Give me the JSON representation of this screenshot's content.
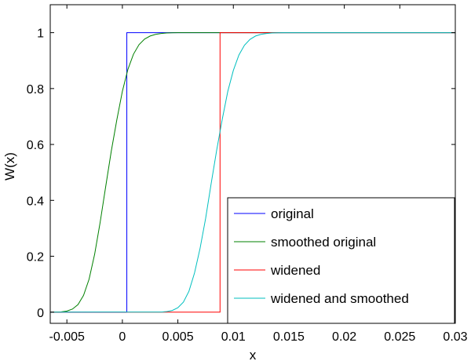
{
  "chart_data": {
    "type": "line",
    "title": "",
    "xlabel": "x",
    "ylabel": "W(x)",
    "xlim": [
      -0.0065,
      0.03
    ],
    "ylim": [
      -0.04,
      1.1
    ],
    "xticks": [
      -0.005,
      0,
      0.005,
      0.01,
      0.015,
      0.02,
      0.025,
      0.03
    ],
    "xtick_labels": [
      "-0.005",
      "0",
      "0.005",
      "0.01",
      "0.015",
      "0.02",
      "0.025",
      "0.03"
    ],
    "yticks": [
      0,
      0.2,
      0.4,
      0.6,
      0.8,
      1
    ],
    "ytick_labels": [
      "0",
      "0.2",
      "0.4",
      "0.6",
      "0.8",
      "1"
    ],
    "grid": false,
    "legend_position": "lower-right",
    "series": [
      {
        "name": "original",
        "color": "#0000ff",
        "x": [
          -0.0065,
          0.0004,
          0.0004,
          0.03
        ],
        "y": [
          0,
          0,
          1,
          1
        ]
      },
      {
        "name": "smoothed original",
        "color": "#008000",
        "x": [
          -0.0065,
          -0.0055,
          -0.005,
          -0.0045,
          -0.004,
          -0.0035,
          -0.003,
          -0.0025,
          -0.002,
          -0.0015,
          -0.001,
          -0.0005,
          0,
          0.0005,
          0.001,
          0.0015,
          0.002,
          0.0025,
          0.003,
          0.0035,
          0.004,
          0.0045,
          0.005,
          0.0055,
          0.006,
          0.03
        ],
        "y": [
          0,
          0.001,
          0.004,
          0.011,
          0.027,
          0.06,
          0.118,
          0.207,
          0.322,
          0.45,
          0.576,
          0.688,
          0.79,
          0.869,
          0.923,
          0.957,
          0.977,
          0.988,
          0.994,
          0.997,
          0.999,
          0.9995,
          1,
          1,
          1,
          1
        ]
      },
      {
        "name": "widened",
        "color": "#ff0000",
        "x": [
          -0.0065,
          0.0088,
          0.0088,
          0.03
        ],
        "y": [
          0,
          0,
          1,
          1
        ]
      },
      {
        "name": "widened and smoothed",
        "color": "#00bfbf",
        "x": [
          -0.0065,
          0.0035,
          0.004,
          0.0045,
          0.005,
          0.0055,
          0.006,
          0.0065,
          0.007,
          0.0075,
          0.008,
          0.0085,
          0.009,
          0.0095,
          0.01,
          0.0105,
          0.011,
          0.0115,
          0.012,
          0.0125,
          0.013,
          0.0135,
          0.014,
          0.0145,
          0.015,
          0.03
        ],
        "y": [
          0,
          0.0005,
          0.002,
          0.006,
          0.016,
          0.036,
          0.075,
          0.14,
          0.228,
          0.335,
          0.46,
          0.58,
          0.69,
          0.79,
          0.865,
          0.92,
          0.955,
          0.976,
          0.988,
          0.994,
          0.997,
          0.999,
          0.9995,
          1,
          1,
          1
        ]
      }
    ]
  }
}
